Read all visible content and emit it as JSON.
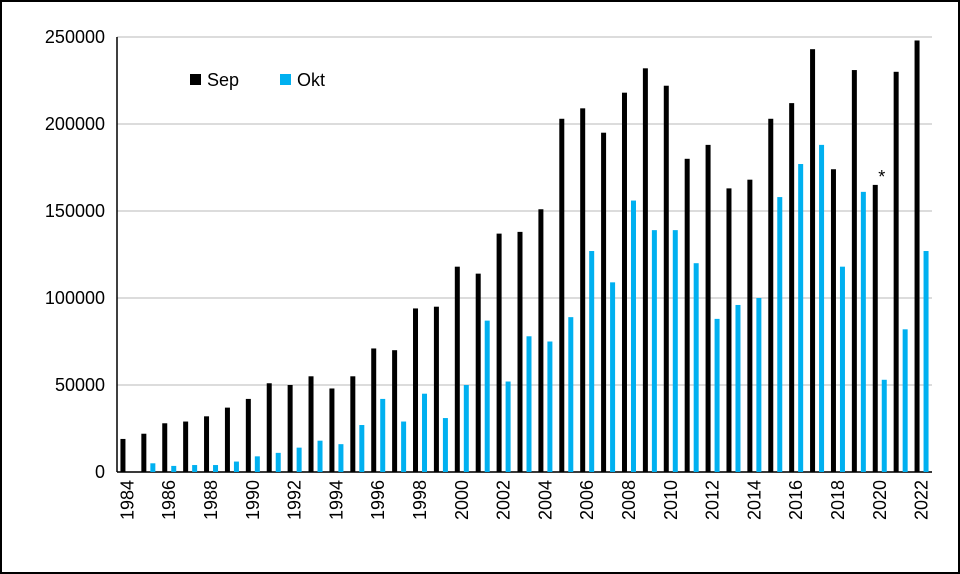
{
  "chart_data": {
    "type": "bar",
    "categories": [
      "1984",
      null,
      "1986",
      null,
      "1988",
      null,
      "1990",
      null,
      "1992",
      null,
      "1994",
      null,
      "1996",
      null,
      "1998",
      null,
      "2000",
      null,
      "2002",
      null,
      "2004",
      null,
      "2006",
      null,
      "2008",
      null,
      "2010",
      null,
      "2012",
      null,
      "2014",
      null,
      "2016",
      null,
      "2018",
      null,
      "2020",
      null,
      "2022"
    ],
    "series": [
      {
        "name": "Sep",
        "color": "#000000",
        "values": [
          19000,
          22000,
          28000,
          29000,
          32000,
          37000,
          42000,
          51000,
          50000,
          55000,
          48000,
          55000,
          71000,
          70000,
          94000,
          95000,
          118000,
          114000,
          137000,
          138000,
          151000,
          203000,
          209000,
          195000,
          218000,
          232000,
          222000,
          180000,
          188000,
          163000,
          168000,
          203000,
          212000,
          243000,
          174000,
          231000,
          165000,
          230000,
          248000
        ]
      },
      {
        "name": "Okt",
        "color": "#00b0f0",
        "values": [
          0,
          5000,
          3500,
          4000,
          4000,
          6000,
          9000,
          11000,
          14000,
          18000,
          16000,
          27000,
          42000,
          29000,
          45000,
          31000,
          50000,
          87000,
          52000,
          78000,
          75000,
          89000,
          127000,
          109000,
          156000,
          139000,
          139000,
          120000,
          88000,
          96000,
          100000,
          158000,
          177000,
          188000,
          118000,
          161000,
          53000,
          82000,
          127000
        ]
      }
    ],
    "annotations": [
      {
        "text": "*",
        "category": "2020"
      }
    ],
    "ylim": [
      0,
      250000
    ],
    "yticks": [
      0,
      50000,
      100000,
      150000,
      200000,
      250000
    ],
    "grid": true,
    "legend": "upper left"
  }
}
